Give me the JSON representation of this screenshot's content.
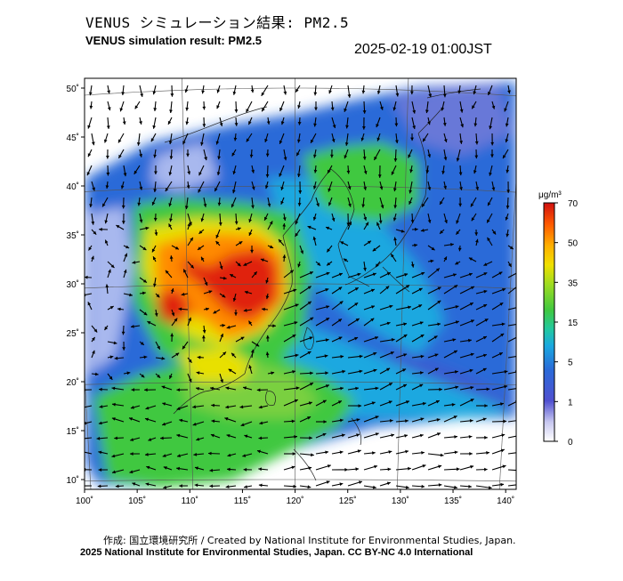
{
  "header": {
    "title_jp": "VENUS シミュレーション結果: PM2.5",
    "title_en": "VENUS simulation result: PM2.5",
    "timestamp": "2025-02-19 01:00JST"
  },
  "map": {
    "lat_ticks": [
      "50˚",
      "45˚",
      "40˚",
      "35˚",
      "30˚",
      "25˚",
      "20˚",
      "15˚",
      "10˚"
    ],
    "lon_ticks": [
      "100˚",
      "105˚",
      "110˚",
      "115˚",
      "120˚",
      "125˚",
      "130˚",
      "135˚",
      "140˚"
    ],
    "lat_values": [
      50,
      45,
      40,
      35,
      30,
      25,
      20,
      15,
      10
    ],
    "lon_values": [
      100,
      105,
      110,
      115,
      120,
      125,
      130,
      135,
      140
    ],
    "lat_range": [
      9,
      51
    ],
    "lon_range": [
      100,
      141
    ]
  },
  "colorbar": {
    "unit": "μg/m³",
    "ticks": [
      "70",
      "50",
      "35",
      "15",
      "5",
      "1",
      "0"
    ],
    "colors": [
      "#d01010",
      "#ff5a00",
      "#ffb000",
      "#e8e000",
      "#4ccc30",
      "#22c8a0",
      "#1aa8e0",
      "#2a6ad8",
      "#3050c8",
      "#ffffff"
    ]
  },
  "credits": {
    "line1": "作成: 国立環境研究所 / Created by National Institute for Environmental Studies, Japan.",
    "line2": "2025 National Institute for Environmental Studies, Japan. CC BY-NC 4.0 International"
  }
}
